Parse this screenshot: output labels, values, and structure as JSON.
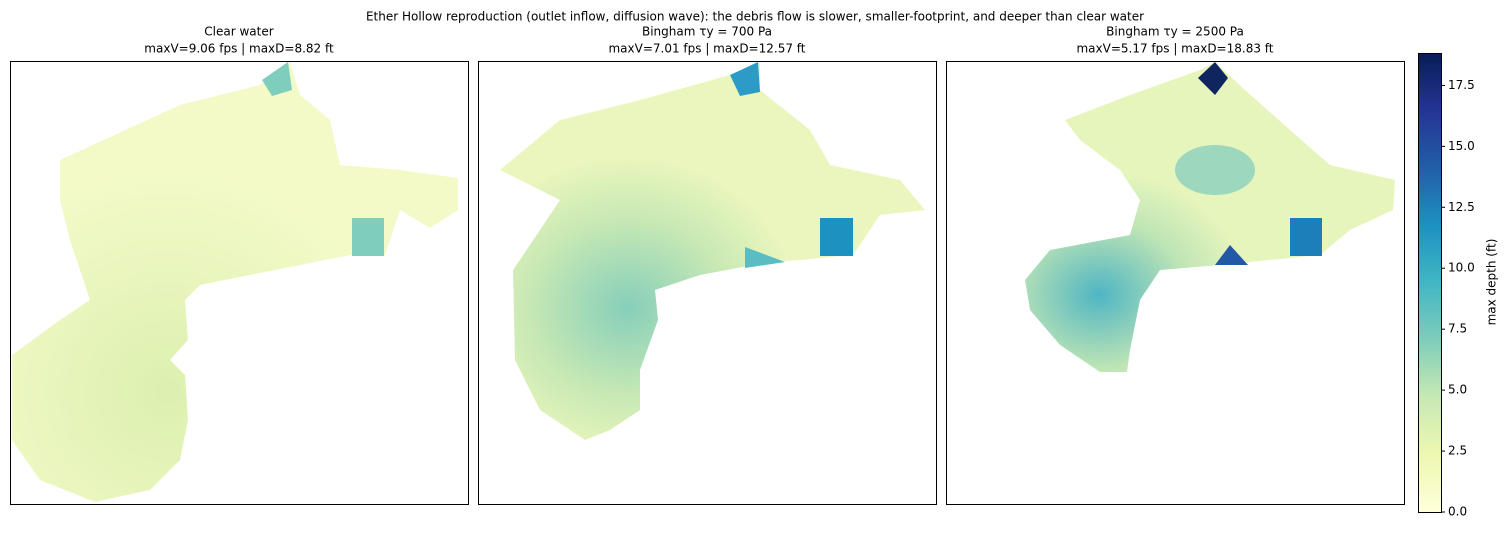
{
  "chart_data": {
    "type": "map",
    "title": "Ether Hollow reproduction (outlet inflow, diffusion wave): the debris flow is slower, smaller-footprint, and deeper than clear water",
    "panels": [
      {
        "title": "Clear water",
        "subtitle": "maxV=9.06 fps | maxD=8.82 ft"
      },
      {
        "title": "Bingham  τy = 700 Pa",
        "subtitle": "maxV=7.01 fps | maxD=12.57 ft"
      },
      {
        "title": "Bingham  τy = 2500 Pa",
        "subtitle": "maxV=5.17 fps | maxD=18.83 ft"
      }
    ],
    "colorbar": {
      "label": "max depth (ft)",
      "ylim": [
        0,
        18.83
      ],
      "yticks": [
        {
          "value": 0,
          "label": "0.0"
        },
        2.5,
        {
          "value": 5,
          "label": "5.0"
        },
        7.5,
        {
          "value": 10,
          "label": "10.0"
        },
        12.5,
        {
          "value": 15,
          "label": "15.0"
        },
        17.5
      ],
      "colormap": [
        "#ffffd9",
        "#edf8b1",
        "#c7e9b4",
        "#7fcdbb",
        "#41b6c4",
        "#1d91c0",
        "#225ea8",
        "#253494",
        "#081d58"
      ]
    }
  }
}
